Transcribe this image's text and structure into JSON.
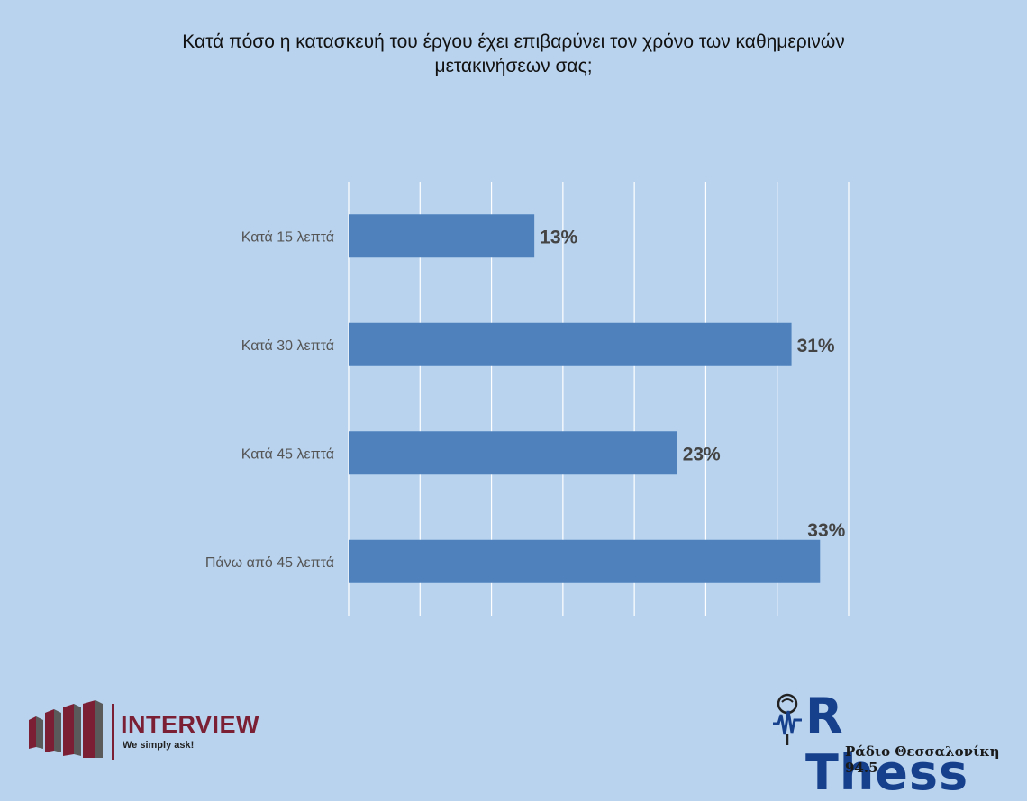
{
  "title": "Κατά πόσο η κατασκευή του έργου έχει επιβαρύνει τον χρόνο των καθημερινών μετακινήσεων σας;",
  "chart_data": {
    "type": "bar",
    "orientation": "horizontal",
    "title": "Κατά πόσο η κατασκευή του έργου έχει επιβαρύνει τον χρόνο των καθημερινών μετακινήσεων σας;",
    "categories": [
      "Κατά 15 λεπτά",
      "Κατά 30 λεπτά",
      "Κατά 45 λεπτά",
      "Πάνω από 45 λεπτά"
    ],
    "values": [
      13,
      31,
      23,
      33
    ],
    "value_labels": [
      "13%",
      "31%",
      "23%",
      "33%"
    ],
    "xlim": [
      0,
      35
    ],
    "grid": true,
    "bar_color": "#4f81bd",
    "label_color": "#444444"
  },
  "logos": {
    "interview": {
      "name": "INTERVIEW",
      "tagline": "We simply ask!",
      "color": "#7a1f34"
    },
    "rthess": {
      "name": "R Thess",
      "subtitle": "Ράδιο Θεσσαλονίκη 94.5",
      "color": "#163f8c"
    }
  }
}
